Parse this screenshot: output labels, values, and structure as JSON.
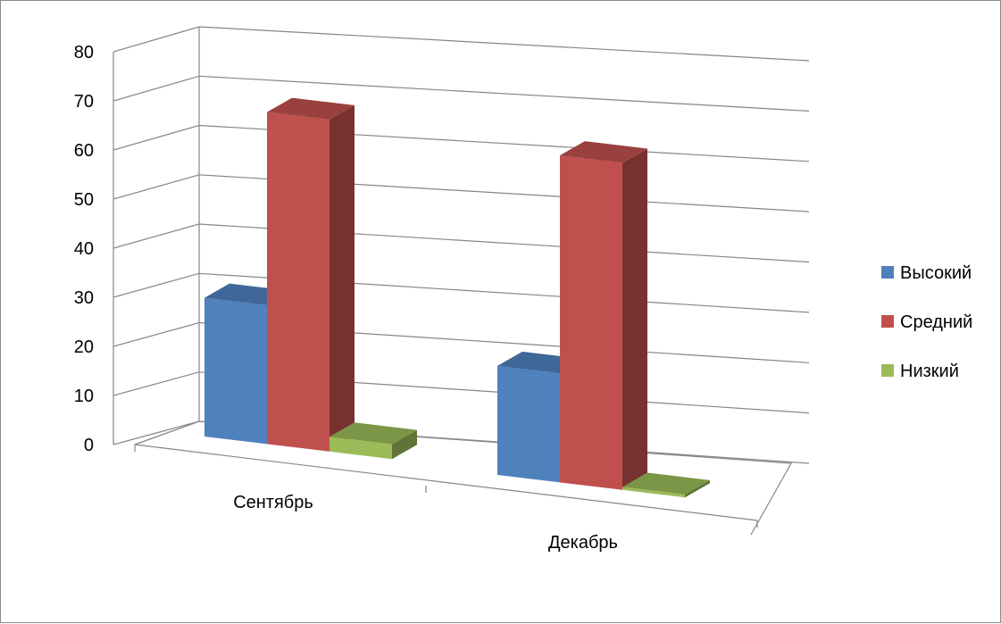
{
  "chart_data": {
    "type": "bar",
    "style": "3d-clustered-column",
    "categories": [
      "Сентябрь",
      "Декабрь"
    ],
    "series": [
      {
        "name": "Высокий",
        "values": [
          28,
          22
        ],
        "color": "#4f81bd"
      },
      {
        "name": "Средний",
        "values": [
          67,
          66
        ],
        "color": "#c0504d"
      },
      {
        "name": "Низкий",
        "values": [
          3,
          0
        ],
        "color": "#9bbb59"
      }
    ],
    "yticks": [
      "0",
      "10",
      "20",
      "30",
      "40",
      "50",
      "60",
      "70",
      "80"
    ],
    "ylim": [
      0,
      80
    ],
    "grid": true,
    "legend_position": "right"
  }
}
